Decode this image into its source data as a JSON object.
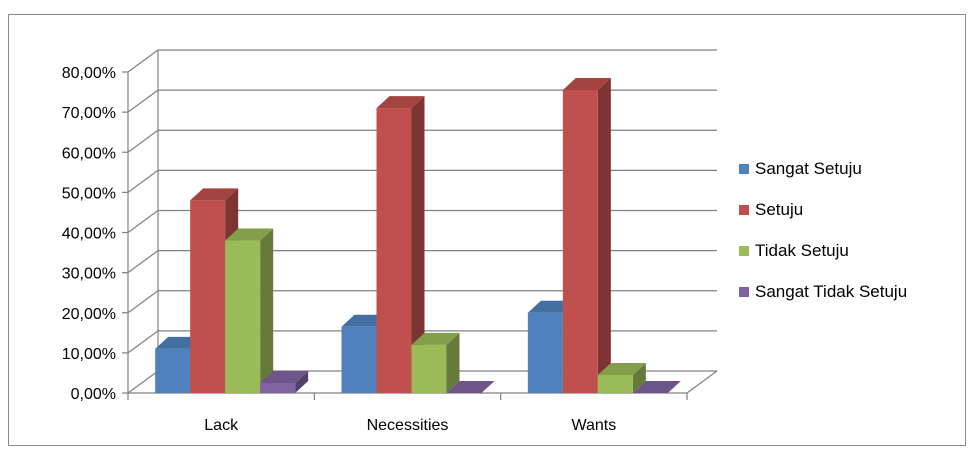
{
  "chart_data": {
    "type": "bar",
    "categories": [
      "Lack",
      "Necessities",
      "Wants"
    ],
    "series": [
      {
        "name": "Sangat Setuju",
        "color": "#4f81bd",
        "values": [
          0.11,
          0.165,
          0.2
        ]
      },
      {
        "name": "Setuju",
        "color": "#c0504d",
        "values": [
          0.48,
          0.71,
          0.755
        ]
      },
      {
        "name": "Tidak Setuju",
        "color": "#9bbb59",
        "values": [
          0.38,
          0.12,
          0.045
        ]
      },
      {
        "name": "Sangat Tidak Setuju",
        "color": "#8064a2",
        "values": [
          0.025,
          0.0,
          0.0
        ]
      }
    ],
    "ylim": [
      0,
      0.8
    ],
    "yticks": [
      0,
      0.1,
      0.2,
      0.3,
      0.4,
      0.5,
      0.6,
      0.7,
      0.8
    ],
    "ytick_labels": [
      "0,00%",
      "10,00%",
      "20,00%",
      "30,00%",
      "40,00%",
      "50,00%",
      "60,00%",
      "70,00%",
      "80,00%"
    ],
    "grid": true,
    "legend": "right",
    "style": "3d-clustered-column"
  }
}
